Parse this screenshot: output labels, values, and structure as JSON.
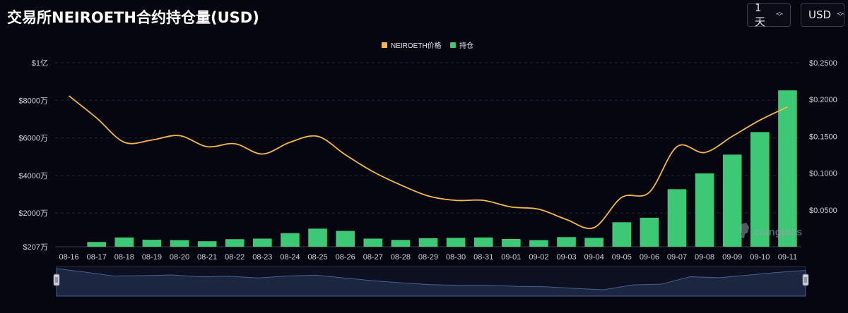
{
  "title": "交易所NEIROETH合约持仓量(USD)",
  "controls": {
    "period": "1天",
    "unit": "USD"
  },
  "colors": {
    "price": "#f5b942",
    "oi": "#3cc874",
    "background": "#05060f",
    "navigator_fill": "#1c2640",
    "navigator_line": "#46608f"
  },
  "watermark": "coinglass",
  "chart_data": {
    "type": "bar",
    "legend_position": "top-center",
    "grid": true,
    "categories": [
      "08-16",
      "08-17",
      "08-18",
      "08-19",
      "08-20",
      "08-21",
      "08-22",
      "08-23",
      "08-24",
      "08-25",
      "08-26",
      "08-27",
      "08-28",
      "08-29",
      "08-30",
      "08-31",
      "09-01",
      "09-02",
      "09-03",
      "09-04",
      "09-05",
      "09-06",
      "09-07",
      "09-08",
      "09-09",
      "09-10",
      "09-11"
    ],
    "left_axis": {
      "ticks": [
        {
          "value": 2070000,
          "label": "$207万"
        },
        {
          "value": 20000000,
          "label": "$2000万"
        },
        {
          "value": 40000000,
          "label": "$4000万"
        },
        {
          "value": 60000000,
          "label": "$6000万"
        },
        {
          "value": 80000000,
          "label": "$8000万"
        },
        {
          "value": 100000000,
          "label": "$1亿"
        }
      ],
      "range": [
        2070000,
        100000000
      ]
    },
    "right_axis": {
      "ticks": [
        {
          "value": 0.05,
          "label": "$0.0500"
        },
        {
          "value": 0.1,
          "label": "$0.1000"
        },
        {
          "value": 0.15,
          "label": "$0.1500"
        },
        {
          "value": 0.2,
          "label": "$0.2000"
        },
        {
          "value": 0.25,
          "label": "$0.2500"
        }
      ],
      "range": [
        0.0,
        0.25
      ]
    },
    "series": [
      {
        "name": "NEIROETH价格",
        "type": "line",
        "axis": "right",
        "values": [
          0.205,
          0.175,
          0.142,
          0.145,
          0.151,
          0.136,
          0.14,
          0.126,
          0.142,
          0.15,
          0.125,
          0.102,
          0.084,
          0.069,
          0.063,
          0.063,
          0.054,
          0.051,
          0.037,
          0.026,
          0.067,
          0.074,
          0.136,
          0.128,
          0.15,
          0.172,
          0.19
        ]
      },
      {
        "name": "持仓",
        "type": "bar",
        "axis": "left",
        "values": [
          2070000,
          4600000,
          7000000,
          5800000,
          5600000,
          5000000,
          6100000,
          6400000,
          9300000,
          11700000,
          10500000,
          6400000,
          5700000,
          6600000,
          6800000,
          7000000,
          6200000,
          5600000,
          7200000,
          6800000,
          15100000,
          17500000,
          32700000,
          41100000,
          51100000,
          63100000,
          85300000
        ]
      }
    ]
  }
}
